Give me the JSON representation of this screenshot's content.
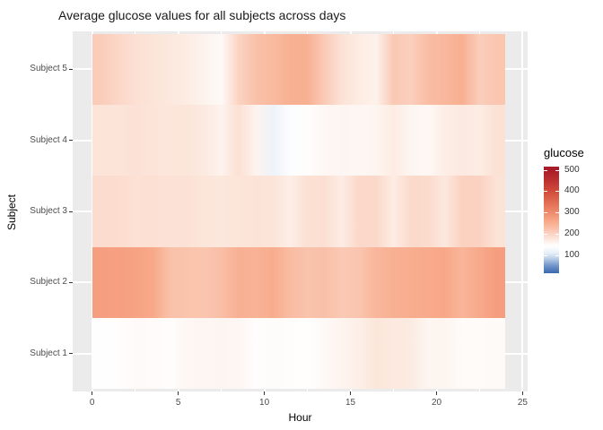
{
  "title": "Average glucose values for all subjects across days",
  "chart_data": {
    "type": "heatmap",
    "title": "Average glucose values for all subjects across days",
    "xlabel": "Hour",
    "ylabel": "Subject",
    "x_ticks": [
      0,
      5,
      10,
      15,
      20,
      25
    ],
    "x_minor_ticks": [
      2.5,
      7.5,
      12.5,
      17.5,
      22.5
    ],
    "x_tile_range": [
      0,
      24
    ],
    "hours": [
      0,
      1,
      2,
      3,
      4,
      5,
      6,
      7,
      8,
      9,
      10,
      11,
      12,
      13,
      14,
      15,
      16,
      17,
      18,
      19,
      20,
      21,
      22,
      23
    ],
    "categories": [
      "Subject 1",
      "Subject 2",
      "Subject 3",
      "Subject 4",
      "Subject 5"
    ],
    "series": [
      {
        "name": "Subject 1",
        "values": [
          146,
          147,
          151,
          150,
          148,
          155,
          156,
          157,
          156,
          147,
          149,
          148,
          146,
          152,
          159,
          166,
          178,
          174,
          171,
          157,
          158,
          150,
          150,
          151
        ]
      },
      {
        "name": "Subject 2",
        "values": [
          272,
          271,
          268,
          260,
          225,
          222,
          219,
          228,
          248,
          246,
          254,
          232,
          223,
          226,
          215,
          219,
          240,
          248,
          253,
          257,
          260,
          241,
          258,
          275
        ]
      },
      {
        "name": "Subject 3",
        "values": [
          190,
          190,
          184,
          185,
          182,
          183,
          178,
          176,
          179,
          181,
          180,
          167,
          185,
          186,
          169,
          194,
          193,
          169,
          192,
          191,
          175,
          203,
          202,
          181
        ]
      },
      {
        "name": "Subject 4",
        "values": [
          180,
          180,
          182,
          180,
          177,
          178,
          173,
          160,
          185,
          160,
          118,
          140,
          148,
          155,
          157,
          156,
          158,
          170,
          157,
          154,
          168,
          172,
          170,
          183
        ]
      },
      {
        "name": "Subject 5",
        "values": [
          210,
          195,
          185,
          180,
          175,
          170,
          160,
          152,
          200,
          225,
          235,
          248,
          248,
          212,
          182,
          170,
          162,
          215,
          206,
          230,
          238,
          250,
          208,
          218
        ]
      }
    ],
    "legend": {
      "title": "glucose",
      "ticks": [
        500,
        400,
        300,
        200,
        100
      ],
      "domain": [
        15,
        515
      ]
    },
    "color_scale": {
      "anchors": [
        [
          15,
          "#3a68ae"
        ],
        [
          50,
          "#6f95c9"
        ],
        [
          90,
          "#c6d8eb"
        ],
        [
          110,
          "#e8eff7"
        ],
        [
          130,
          "#f7fafc"
        ],
        [
          145,
          "#ffffff"
        ],
        [
          160,
          "#fdf3ee"
        ],
        [
          180,
          "#fce4d8"
        ],
        [
          200,
          "#fbd3c3"
        ],
        [
          230,
          "#f9bda4"
        ],
        [
          260,
          "#f8a888"
        ],
        [
          300,
          "#ef8a6d"
        ],
        [
          350,
          "#e06b51"
        ],
        [
          400,
          "#d04b3a"
        ],
        [
          450,
          "#bc3030"
        ],
        [
          500,
          "#a81b28"
        ]
      ]
    },
    "panel_background": "#ebebeb",
    "gridline_color": "#ffffff",
    "layout_hints": {
      "grid": "on",
      "legend_position": "right"
    }
  }
}
